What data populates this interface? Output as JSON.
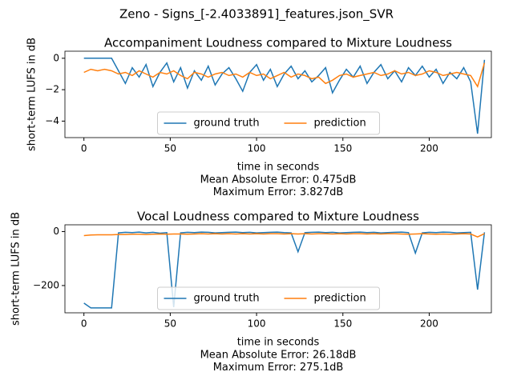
{
  "title": "Zeno - Signs_[-2.4033891]_features.json_SVR",
  "chart_data": [
    {
      "type": "line",
      "title": "Accompaniment Loudness compared to Mixture Loudness",
      "xlabel": "time in seconds",
      "ylabel": "short-term LUFS in dB",
      "annotations": [
        "Mean Absolute Error: 0.475dB",
        "Maximum Error: 3.827dB"
      ],
      "x": [
        0,
        4,
        8,
        12,
        16,
        20,
        24,
        28,
        32,
        36,
        40,
        44,
        48,
        52,
        56,
        60,
        64,
        68,
        72,
        76,
        80,
        84,
        88,
        92,
        96,
        100,
        104,
        108,
        112,
        116,
        120,
        124,
        128,
        132,
        136,
        140,
        144,
        148,
        152,
        156,
        160,
        164,
        168,
        172,
        176,
        180,
        184,
        188,
        192,
        196,
        200,
        204,
        208,
        212,
        216,
        220,
        224,
        228,
        232
      ],
      "series": [
        {
          "name": "ground truth",
          "color": "#1f77b4",
          "values": [
            0,
            0,
            0,
            0,
            0,
            -0.8,
            -1.6,
            -0.6,
            -1.2,
            -0.4,
            -1.8,
            -0.9,
            -0.3,
            -1.5,
            -0.6,
            -1.9,
            -0.8,
            -1.4,
            -0.5,
            -1.7,
            -1.0,
            -0.6,
            -1.3,
            -2.1,
            -0.9,
            -0.4,
            -1.4,
            -0.7,
            -1.8,
            -1.0,
            -0.5,
            -1.3,
            -0.8,
            -1.5,
            -1.1,
            -0.6,
            -2.2,
            -1.4,
            -0.7,
            -1.2,
            -0.5,
            -1.6,
            -0.9,
            -0.4,
            -1.3,
            -0.8,
            -1.5,
            -0.6,
            -1.1,
            -0.5,
            -1.2,
            -0.7,
            -1.6,
            -0.9,
            -1.3,
            -0.6,
            -1.5,
            -4.8,
            -0.1
          ]
        },
        {
          "name": "prediction",
          "color": "#ff7f0e",
          "values": [
            -0.9,
            -0.7,
            -0.8,
            -0.7,
            -0.8,
            -1.0,
            -0.9,
            -1.1,
            -0.8,
            -1.0,
            -1.2,
            -0.9,
            -1.0,
            -0.8,
            -1.1,
            -1.3,
            -0.9,
            -1.0,
            -1.2,
            -1.0,
            -0.9,
            -1.1,
            -1.0,
            -1.2,
            -0.9,
            -1.1,
            -1.0,
            -1.3,
            -1.1,
            -0.9,
            -1.2,
            -1.0,
            -1.1,
            -1.3,
            -1.2,
            -1.6,
            -1.4,
            -1.1,
            -1.0,
            -1.2,
            -1.1,
            -1.0,
            -0.9,
            -1.1,
            -1.0,
            -0.8,
            -1.0,
            -0.9,
            -1.1,
            -1.0,
            -0.8,
            -0.9,
            -1.1,
            -1.0,
            -0.9,
            -1.0,
            -1.1,
            -1.8,
            -0.3
          ]
        }
      ],
      "xlim": [
        -11,
        236
      ],
      "ylim": [
        -5.05,
        0.45
      ],
      "xticks": [
        0,
        50,
        100,
        150,
        200
      ],
      "yticks": [
        {
          "value": -4,
          "label": "−4"
        },
        {
          "value": -2,
          "label": "−2"
        },
        0
      ],
      "legend": "lower center"
    },
    {
      "type": "line",
      "title": "Vocal Loudness compared to Mixture Loudness",
      "xlabel": "time in seconds",
      "ylabel": "short-term LUFS in dB",
      "annotations": [
        "Mean Absolute Error: 26.18dB",
        "Maximum Error: 275.1dB"
      ],
      "x": [
        0,
        4,
        8,
        12,
        16,
        20,
        24,
        28,
        32,
        36,
        40,
        44,
        48,
        52,
        56,
        60,
        64,
        68,
        72,
        76,
        80,
        84,
        88,
        92,
        96,
        100,
        104,
        108,
        112,
        116,
        120,
        124,
        128,
        132,
        136,
        140,
        144,
        148,
        152,
        156,
        160,
        164,
        168,
        172,
        176,
        180,
        184,
        188,
        192,
        196,
        200,
        204,
        208,
        212,
        216,
        220,
        224,
        228,
        232
      ],
      "series": [
        {
          "name": "ground truth",
          "color": "#1f77b4",
          "values": [
            -265,
            -283,
            -283,
            -283,
            -283,
            -5,
            -3,
            -4,
            -2,
            -5,
            -3,
            -6,
            -4,
            -280,
            -5,
            -3,
            -4,
            -2,
            -3,
            -5,
            -4,
            -3,
            -2,
            -4,
            -3,
            -5,
            -4,
            -3,
            -2,
            -4,
            -5,
            -75,
            -4,
            -3,
            -2,
            -4,
            -3,
            -5,
            -4,
            -3,
            -2,
            -4,
            -3,
            -5,
            -4,
            -3,
            -2,
            -4,
            -80,
            -5,
            -3,
            -4,
            -2,
            -3,
            -5,
            -4,
            -3,
            -215,
            -3
          ]
        },
        {
          "name": "prediction",
          "color": "#ff7f0e",
          "values": [
            -15,
            -13,
            -12,
            -12,
            -12,
            -11,
            -11,
            -10,
            -10,
            -11,
            -10,
            -9,
            -10,
            -9,
            -9,
            -10,
            -9,
            -8,
            -9,
            -8,
            -9,
            -8,
            -9,
            -8,
            -9,
            -8,
            -9,
            -8,
            -8,
            -9,
            -8,
            -9,
            -8,
            -9,
            -8,
            -8,
            -9,
            -8,
            -9,
            -8,
            -8,
            -9,
            -8,
            -9,
            -8,
            -8,
            -9,
            -10,
            -9,
            -8,
            -9,
            -10,
            -9,
            -10,
            -9,
            -8,
            -9,
            -20,
            -8
          ]
        }
      ],
      "xlim": [
        -11,
        236
      ],
      "ylim": [
        -301,
        25
      ],
      "xticks": [
        0,
        50,
        100,
        150,
        200
      ],
      "yticks": [
        {
          "value": -200,
          "label": "−200"
        },
        0
      ],
      "legend": "lower center"
    }
  ]
}
